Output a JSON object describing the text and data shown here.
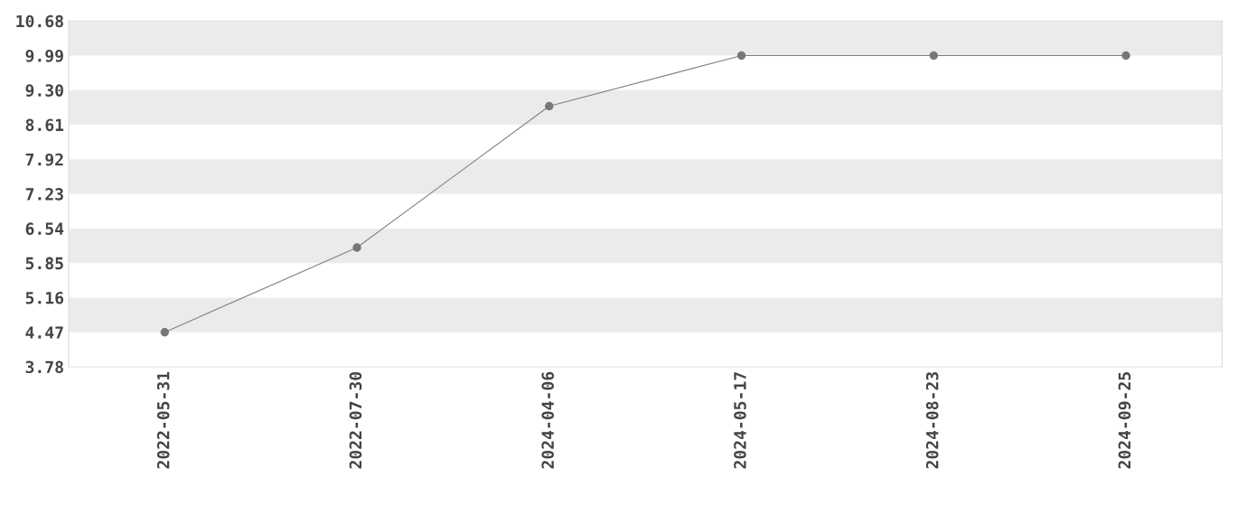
{
  "chart_data": {
    "type": "line",
    "categories": [
      "2022-05-31",
      "2022-07-30",
      "2024-04-06",
      "2024-05-17",
      "2024-08-23",
      "2024-09-25"
    ],
    "series": [
      {
        "color": "#808080",
        "values": [
          4.47,
          6.16,
          8.98,
          9.99,
          9.99,
          9.99
        ]
      }
    ],
    "ylim": [
      3.78,
      10.68
    ],
    "yticks": [
      3.78,
      4.47,
      5.16,
      5.85,
      6.54,
      7.23,
      7.92,
      8.61,
      {
        "value": 9.3,
        "label": "9.30"
      },
      9.99,
      10.68
    ],
    "bands": [
      {
        "axis": "y",
        "from": 4.47,
        "to": 5.16,
        "color": "#ebebeb"
      },
      {
        "axis": "y",
        "from": 5.85,
        "to": 6.54,
        "color": "#ebebeb"
      },
      {
        "axis": "y",
        "from": 7.23,
        "to": 7.92,
        "color": "#ebebeb"
      },
      {
        "axis": "y",
        "from": 8.61,
        "to": 9.3,
        "color": "#ebebeb"
      },
      {
        "axis": "y",
        "from": 9.99,
        "to": 10.68,
        "color": "#ebebeb"
      }
    ],
    "marker": "circle",
    "line_style": "solid"
  }
}
